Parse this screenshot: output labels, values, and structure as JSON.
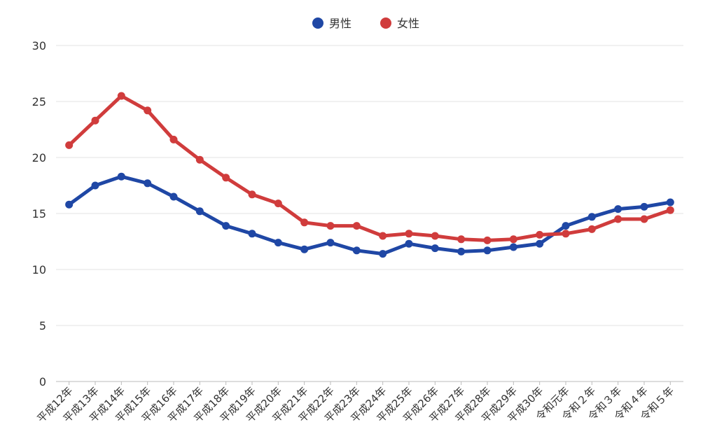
{
  "chart_data": {
    "type": "line",
    "categories": [
      "平成12年",
      "平成13年",
      "平成14年",
      "平成15年",
      "平成16年",
      "平成17年",
      "平成18年",
      "平成19年",
      "平成20年",
      "平成21年",
      "平成22年",
      "平成23年",
      "平成24年",
      "平成25年",
      "平成26年",
      "平成27年",
      "平成28年",
      "平成29年",
      "平成30年",
      "令和元年",
      "令和２年",
      "令和３年",
      "令和４年",
      "令和５年"
    ],
    "series": [
      {
        "name": "男性",
        "color": "#1f47a5",
        "values": [
          15.8,
          17.5,
          18.3,
          17.7,
          16.5,
          15.2,
          13.9,
          13.2,
          12.4,
          11.8,
          12.4,
          11.7,
          11.4,
          12.3,
          11.9,
          11.6,
          11.7,
          12.0,
          12.3,
          13.9,
          14.7,
          15.4,
          15.6,
          16.0
        ]
      },
      {
        "name": "女性",
        "color": "#d03c3c",
        "values": [
          21.1,
          23.3,
          25.5,
          24.2,
          21.6,
          19.8,
          18.2,
          16.7,
          15.9,
          14.2,
          13.9,
          13.9,
          13.0,
          13.2,
          13.0,
          12.7,
          12.6,
          12.7,
          13.1,
          13.2,
          13.6,
          14.5,
          14.5,
          15.3
        ]
      }
    ],
    "y_ticks": [
      "0",
      "5",
      "10",
      "15",
      "20",
      "25",
      "30"
    ],
    "ylim": [
      0,
      30
    ],
    "xlabel": "",
    "ylabel": "",
    "grid": true,
    "legend": "top-center"
  }
}
